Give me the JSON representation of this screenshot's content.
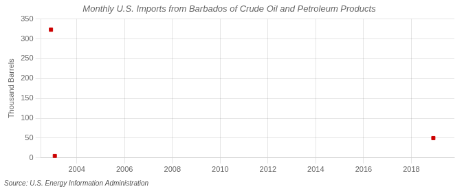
{
  "chart_data": {
    "type": "scatter",
    "title": "Monthly U.S. Imports from Barbados of Crude Oil and Petroleum Products",
    "ylabel": "Thousand Barrels",
    "annotations": [
      "Source: U.S. Energy Information Administration"
    ],
    "x": [
      2002.92,
      2003.08,
      2018.92
    ],
    "values": [
      323,
      5,
      50
    ],
    "color": "#cc0000",
    "marker": "square",
    "xlim": [
      2002.5,
      2019.8
    ],
    "xticks": [
      2004,
      2006,
      2008,
      2010,
      2012,
      2014,
      2016,
      2018
    ],
    "ylim": [
      0,
      350
    ],
    "yticks": [
      0,
      50,
      100,
      150,
      200,
      250,
      300,
      350
    ],
    "grid": true
  }
}
